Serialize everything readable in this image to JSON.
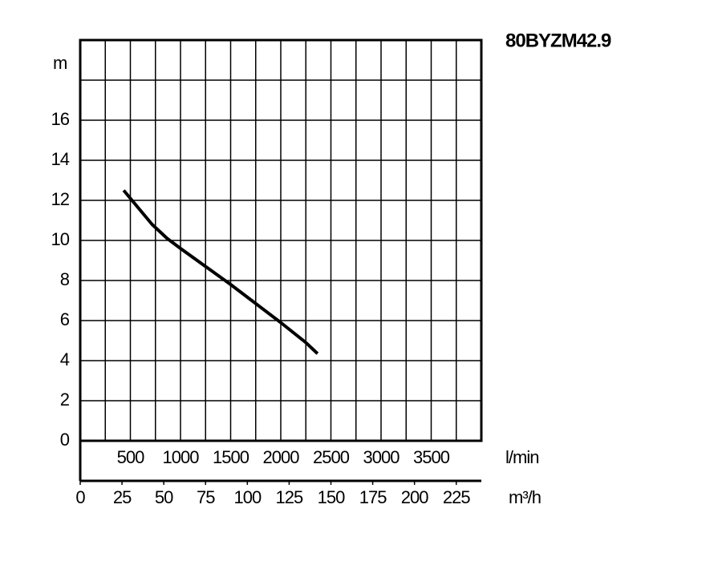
{
  "chart_data": {
    "type": "line",
    "title": "80BYZM42.9",
    "y_unit": "m",
    "x_unit": "m³/h",
    "x2_unit": "l/min",
    "xlim": [
      0,
      240
    ],
    "xticks": [
      0,
      25,
      50,
      75,
      100,
      125,
      150,
      175,
      200,
      225
    ],
    "x2lim": [
      0,
      4000
    ],
    "x2ticks": [
      500,
      1000,
      1500,
      2000,
      2500,
      3000,
      3500
    ],
    "x2grid": [
      250,
      500,
      750,
      1000,
      1250,
      1500,
      1750,
      2000,
      2250,
      2500,
      2750,
      3000,
      3250,
      3500,
      3750
    ],
    "ylim": [
      0,
      20
    ],
    "yticks": [
      0,
      2,
      4,
      6,
      8,
      10,
      12,
      14,
      16
    ],
    "ygrid": [
      2,
      4,
      6,
      8,
      10,
      12,
      14,
      16,
      18
    ],
    "series": [
      {
        "color": "#000000",
        "x": [
          26,
          35,
          43,
          52,
          60,
          75,
          90,
          105,
          120,
          135,
          142
        ],
        "values": [
          12.5,
          11.6,
          10.8,
          10.1,
          9.6,
          8.7,
          7.8,
          6.85,
          5.9,
          4.9,
          4.35
        ]
      }
    ]
  }
}
